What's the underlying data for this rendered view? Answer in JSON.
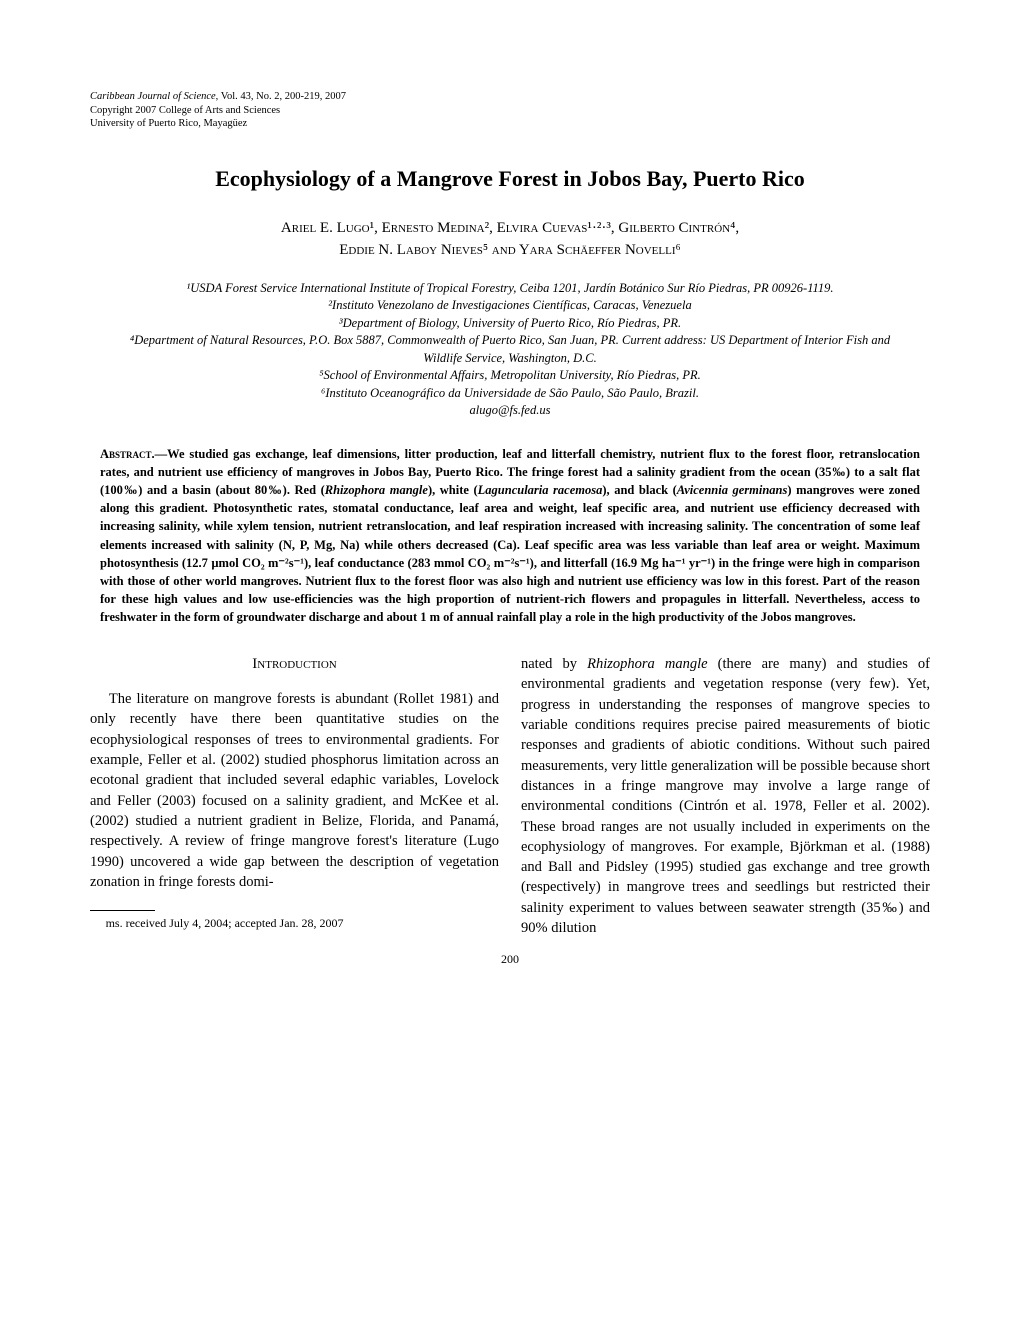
{
  "journal": {
    "line1_italic": "Caribbean Journal of Science,",
    "line1_rest": " Vol. 43, No. 2, 200-219, 2007",
    "line2": "Copyright 2007 College of Arts and Sciences",
    "line3": "University of Puerto Rico, Mayagüez"
  },
  "title": "Ecophysiology of a Mangrove Forest in Jobos Bay, Puerto Rico",
  "authors_line1": "Ariel E. Lugo¹, Ernesto Medina², Elvira Cuevas¹·²·³, Gilberto Cintrón⁴,",
  "authors_line2": "Eddie N. Laboy Nieves⁵ and Yara Schäeffer Novelli⁶",
  "affiliations": {
    "a1": "¹USDA Forest Service International Institute of Tropical Forestry, Ceiba 1201, Jardín Botánico Sur Río Piedras, PR 00926-1119.",
    "a2": "²Instituto Venezolano de Investigaciones Científicas, Caracas, Venezuela",
    "a3": "³Department of Biology, University of Puerto Rico, Río Piedras, PR.",
    "a4": "⁴Department of Natural Resources, P.O. Box 5887, Commonwealth of Puerto Rico, San Juan, PR. Current address: US Department of Interior Fish and Wildlife Service, Washington, D.C.",
    "a5": "⁵School of Environmental Affairs, Metropolitan University, Río Piedras, PR.",
    "a6": "⁶Instituto Oceanográfico da Universidade de São Paulo, São Paulo, Brazil.",
    "email": "alugo@fs.fed.us"
  },
  "abstract": {
    "label": "Abstract.",
    "text_before_rm": "—We studied gas exchange, leaf dimensions, litter production, leaf and litterfall chemistry, nutrient flux to the forest floor, retranslocation rates, and nutrient use efficiency of mangroves in Jobos Bay, Puerto Rico. The fringe forest had a salinity gradient from the ocean (35‰) to a salt flat (100‰) and a basin (about 80‰). Red (",
    "rm": "Rhizophora mangle",
    "text_mid1": "), white (",
    "lr": "Laguncularia racemosa",
    "text_mid2": "), and black (",
    "ag": "Avicennia germinans",
    "text_after": ") mangroves were zoned along this gradient. Photosynthetic rates, stomatal conductance, leaf area and weight, leaf specific area, and nutrient use efficiency decreased with increasing salinity, while xylem tension, nutrient retranslocation, and leaf respiration increased with increasing salinity. The concentration of some leaf elements increased with salinity (N, P, Mg, Na) while others decreased (Ca). Leaf specific area was less variable than leaf area or weight. Maximum photosynthesis (12.7 µmol CO₂ m⁻²s⁻¹), leaf conductance (283 mmol CO₂ m⁻²s⁻¹), and litterfall (16.9 Mg ha⁻¹ yr⁻¹) in the fringe were high in comparison with those of other world mangroves. Nutrient flux to the forest floor was also high and nutrient use efficiency was low in this forest. Part of the reason for these high values and low use-efficiencies was the high proportion of nutrient-rich flowers and propagules in litterfall. Nevertheless, access to freshwater in the form of groundwater discharge and about 1 m of annual rainfall play a role in the high productivity of the Jobos mangroves."
  },
  "section_heading": "Introduction",
  "col1": {
    "para": "The literature on mangrove forests is abundant (Rollet 1981) and only recently have there been quantitative studies on the ecophysiological responses of trees to environmental gradients. For example, Feller et al. (2002) studied phosphorus limitation across an ecotonal gradient that included several edaphic variables, Lovelock and Feller (2003) focused on a salinity gradient, and McKee et al. (2002) studied a nutrient gradient in Belize, Florida, and Panamá, respectively. A review of fringe mangrove forest's literature (Lugo 1990) uncovered a wide gap between the description of vegetation zonation in fringe forests domi-"
  },
  "col2": {
    "para_pre": "nated by ",
    "rm": "Rhizophora mangle",
    "para_post": " (there are many) and studies of environmental gradients and vegetation response (very few). Yet, progress in understanding the responses of mangrove species to variable conditions requires precise paired measurements of biotic responses and gradients of abiotic conditions. Without such paired measurements, very little generalization will be possible because short distances in a fringe mangrove may involve a large range of environmental conditions (Cintrón et al. 1978, Feller et al. 2002). These broad ranges are not usually included in experiments on the ecophysiology of mangroves. For example, Björkman et al. (1988) and Ball and Pidsley (1995) studied gas exchange and tree growth (respectively) in mangrove trees and seedlings but restricted their salinity experiment to values between seawater strength (35‰) and 90% dilution"
  },
  "footnote": "ms. received July 4, 2004; accepted Jan. 28, 2007",
  "page_number": "200"
}
